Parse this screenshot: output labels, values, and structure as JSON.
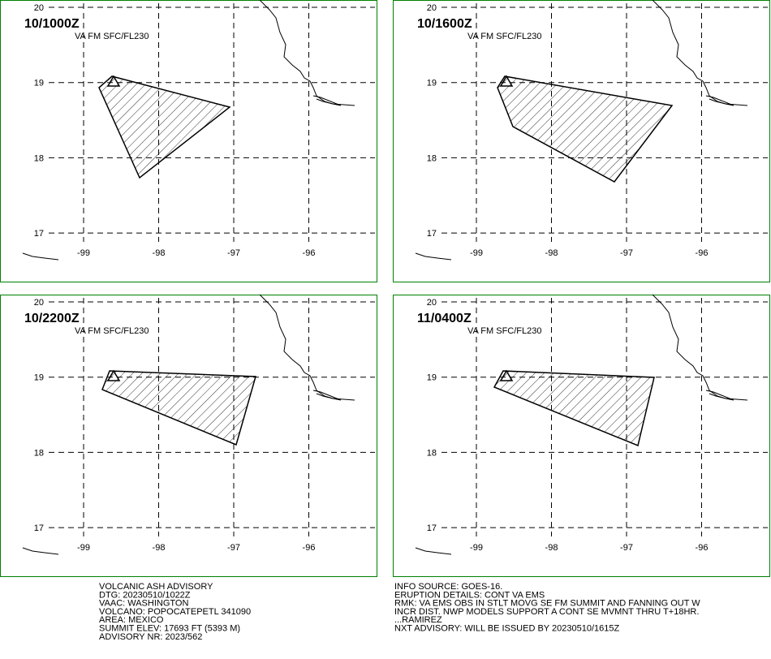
{
  "panels": [
    {
      "time": "10/1000Z",
      "level": "VA FM SFC/FL230"
    },
    {
      "time": "10/1600Z",
      "level": "VA FM SFC/FL230"
    },
    {
      "time": "10/2200Z",
      "level": "VA FM SFC/FL230"
    },
    {
      "time": "11/0400Z",
      "level": "VA FM SFC/FL230"
    }
  ],
  "map": {
    "lat_ticks": [
      20,
      19,
      18,
      17
    ],
    "lon_ticks": [
      -99,
      -98,
      -97,
      -96
    ]
  },
  "advisory_left": [
    "VOLCANIC ASH ADVISORY",
    "DTG: 20230510/1022Z",
    "VAAC: WASHINGTON",
    "VOLCANO: POPOCATEPETL 341090",
    "AREA: MEXICO",
    "SUMMIT ELEV: 17693 FT (5393 M)",
    "ADVISORY NR: 2023/562"
  ],
  "advisory_right": [
    "INFO SOURCE: GOES-16.",
    "ERUPTION DETAILS: CONT VA EMS",
    "RMK: VA EMS OBS IN STLT MOVG SE FM SUMMIT AND FANNING OUT W",
    "INCR DIST. NWP MODELS SUPPORT A CONT SE MVMNT THRU T+18HR.",
    "...RAMIREZ",
    "NXT ADVISORY: WILL BE ISSUED BY 20230510/1615Z"
  ]
}
